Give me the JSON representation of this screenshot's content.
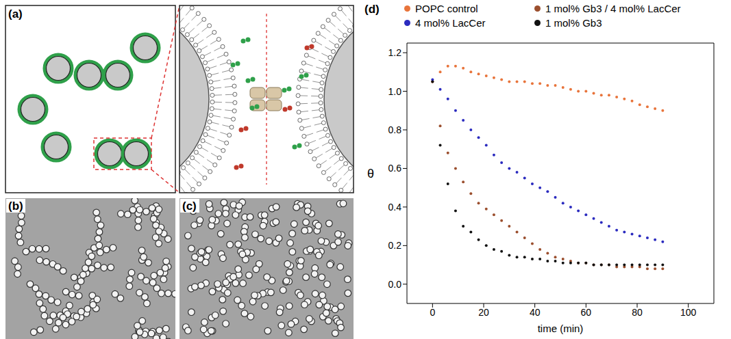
{
  "panels": [
    "(a)",
    "(b)",
    "(c)",
    "(d)"
  ],
  "chart_data": {
    "type": "scatter",
    "x_label": "time (min)",
    "y_label": "θ",
    "xlim": [
      -10,
      110
    ],
    "xticks": [
      0,
      20,
      40,
      60,
      80,
      100
    ],
    "ylim": [
      -0.1,
      1.25
    ],
    "yticks": [
      {
        "value": 0,
        "label": "0.0"
      },
      {
        "value": 0.2,
        "label": "0.2"
      },
      {
        "value": 0.4,
        "label": "0.4"
      },
      {
        "value": 0.6,
        "label": "0.6"
      },
      {
        "value": 0.8,
        "label": "0.8"
      },
      {
        "value": 1.0,
        "label": "1.0"
      },
      {
        "value": 1.2,
        "label": "1.2"
      }
    ],
    "grid": false,
    "legend": "top",
    "marker": "circle",
    "x": [
      0,
      3,
      6,
      9,
      12,
      15,
      18,
      21,
      24,
      27,
      30,
      33,
      36,
      39,
      42,
      45,
      48,
      51,
      54,
      57,
      60,
      63,
      66,
      69,
      72,
      75,
      78,
      81,
      84,
      87,
      90
    ],
    "series": [
      {
        "name": "POPC control",
        "color": "#e8743b",
        "values": [
          1.05,
          1.1,
          1.13,
          1.13,
          1.12,
          1.1,
          1.09,
          1.08,
          1.07,
          1.06,
          1.05,
          1.05,
          1.05,
          1.04,
          1.04,
          1.03,
          1.03,
          1.02,
          1.01,
          1.0,
          1.0,
          0.99,
          0.98,
          0.98,
          0.97,
          0.96,
          0.95,
          0.93,
          0.92,
          0.91,
          0.9
        ]
      },
      {
        "name": "1 mol% Gb3 / 4 mol% LacCer",
        "color": "#9b4f2e",
        "values": [
          1.05,
          0.82,
          0.68,
          0.6,
          0.53,
          0.47,
          0.42,
          0.39,
          0.36,
          0.33,
          0.3,
          0.27,
          0.24,
          0.21,
          0.18,
          0.16,
          0.14,
          0.13,
          0.12,
          0.11,
          0.11,
          0.1,
          0.1,
          0.1,
          0.09,
          0.09,
          0.09,
          0.09,
          0.08,
          0.08,
          0.08
        ]
      },
      {
        "name": "4 mol% LacCer",
        "color": "#2b2bbf",
        "values": [
          1.06,
          1.01,
          0.96,
          0.9,
          0.85,
          0.8,
          0.76,
          0.72,
          0.67,
          0.63,
          0.6,
          0.58,
          0.55,
          0.52,
          0.5,
          0.48,
          0.45,
          0.42,
          0.4,
          0.38,
          0.36,
          0.34,
          0.32,
          0.3,
          0.28,
          0.27,
          0.26,
          0.25,
          0.24,
          0.23,
          0.22
        ]
      },
      {
        "name": "1 mol% Gb3",
        "color": "#111111",
        "values": [
          1.05,
          0.72,
          0.52,
          0.38,
          0.3,
          0.27,
          0.23,
          0.2,
          0.18,
          0.17,
          0.15,
          0.14,
          0.14,
          0.13,
          0.13,
          0.12,
          0.12,
          0.11,
          0.11,
          0.11,
          0.11,
          0.1,
          0.1,
          0.1,
          0.1,
          0.1,
          0.1,
          0.1,
          0.1,
          0.1,
          0.1
        ]
      }
    ]
  }
}
